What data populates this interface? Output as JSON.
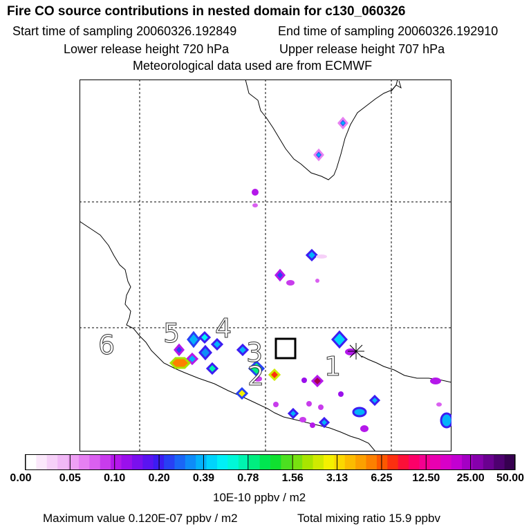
{
  "header": {
    "title": "Fire CO source contributions in nested domain for c130_060326",
    "start_time": "Start time of sampling 20060326.192849",
    "end_time": "End time of sampling 20060326.192910",
    "lower_height": "Lower release height  720 hPa",
    "upper_height": "Upper release height  707 hPa",
    "met_data": "Meteorological data used are from ECMWF"
  },
  "chart_data": {
    "type": "heatmap",
    "title": "Fire CO source contributions in nested domain for c130_060326",
    "map_labels": [
      "1",
      "2",
      "3",
      "4",
      "5",
      "6"
    ],
    "colorbar": {
      "ticks": [
        "0.00",
        "0.05",
        "0.10",
        "0.20",
        "0.39",
        "0.78",
        "1.56",
        "3.13",
        "6.25",
        "12.50",
        "25.00",
        "50.00"
      ],
      "units": "10E-10 ppbv / m2",
      "colors": [
        "#ffffff",
        "#fbe8fb",
        "#f6d0f8",
        "#f1b8f6",
        "#eea0f4",
        "#e680f2",
        "#da60f0",
        "#c83cec",
        "#b418ea",
        "#9a10ec",
        "#7a10ee",
        "#5a14f0",
        "#3c1cf2",
        "#2840f4",
        "#1a66f6",
        "#0e8cf8",
        "#04b2fa",
        "#00d4fc",
        "#00f0f6",
        "#00f8d8",
        "#00f4b0",
        "#00ee80",
        "#00e650",
        "#10e030",
        "#4ce020",
        "#78e010",
        "#a8e400",
        "#d0ea00",
        "#f4f000",
        "#fcd800",
        "#fcbc00",
        "#fca000",
        "#fc8000",
        "#fc5800",
        "#fc3010",
        "#fc1038",
        "#fc0068",
        "#f40090",
        "#e800b0",
        "#d800c8",
        "#c200d2",
        "#a400c4",
        "#8600ac",
        "#6a0090",
        "#4e0070",
        "#360050"
      ]
    },
    "max_value": "Maximum value  0.120E-07 ppbv / m2",
    "total_mixing_ratio": "Total mixing ratio       15.9 ppbv"
  }
}
